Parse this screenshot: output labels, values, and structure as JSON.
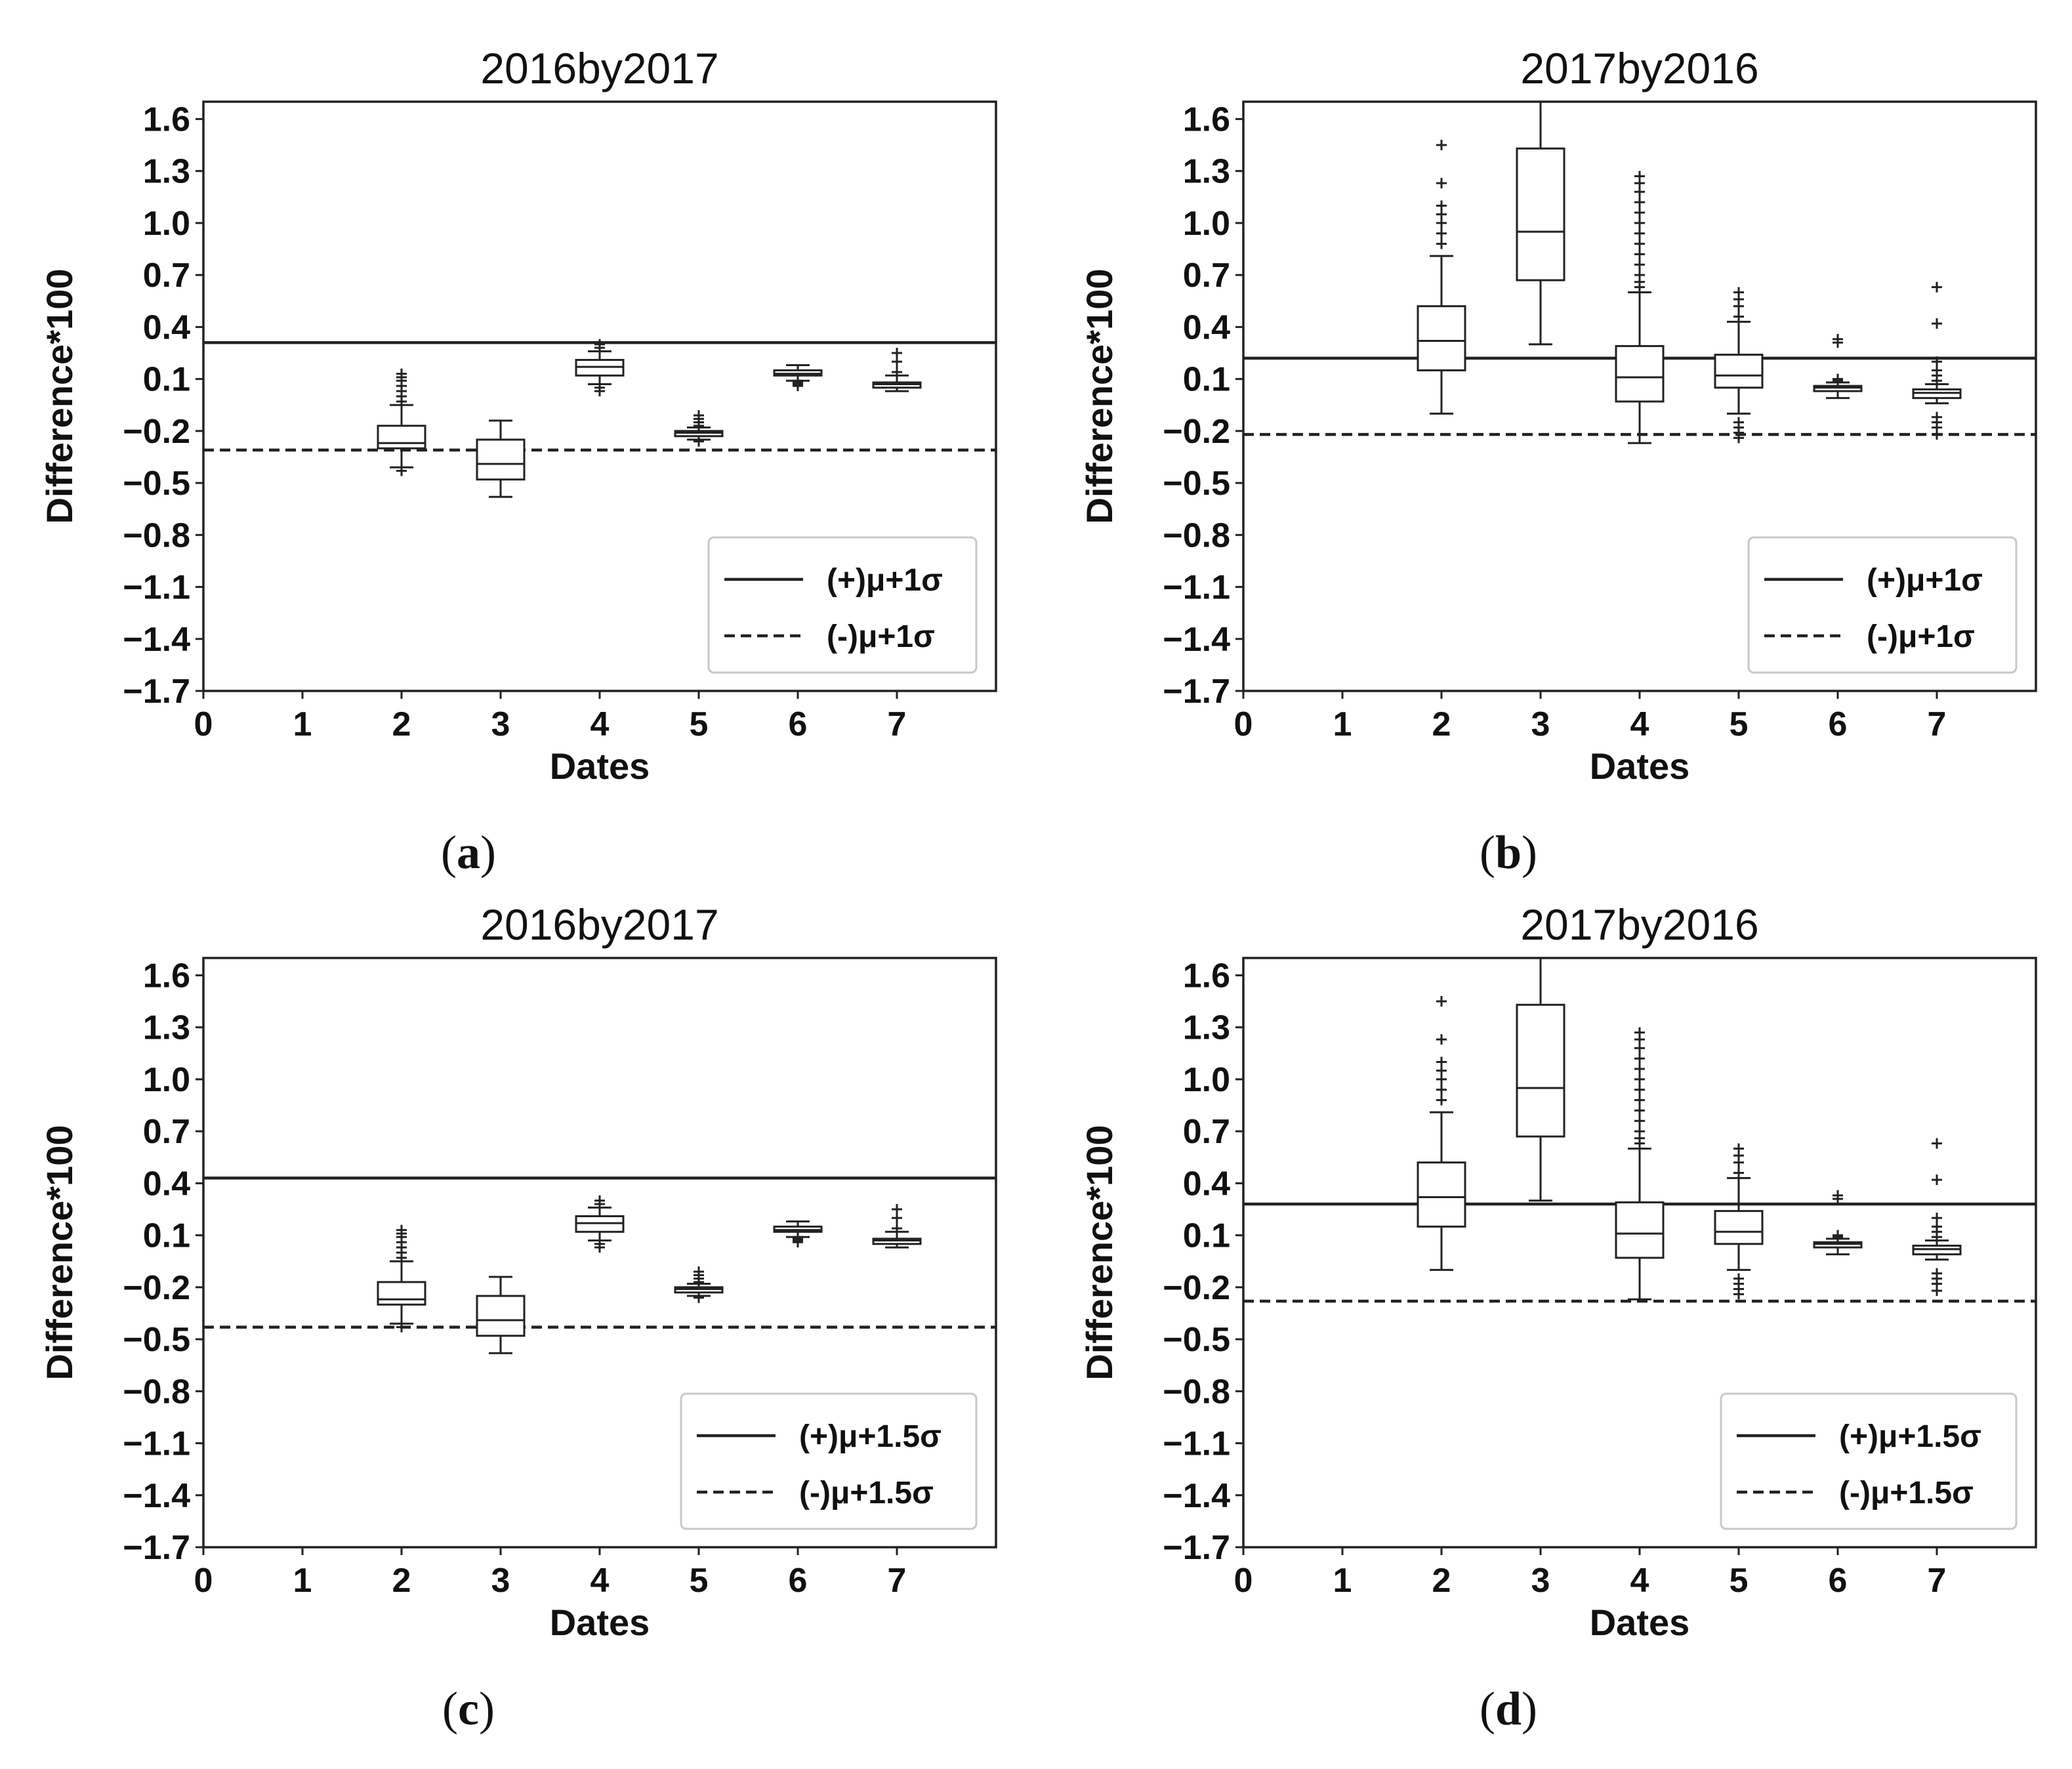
{
  "figure": {
    "panels": [
      {
        "id": "a",
        "caption_letter": "a",
        "chart_data": {
          "type": "box",
          "title": "2016by2017",
          "xlabel": "Dates",
          "ylabel": "Difference*100",
          "xlim": [
            0,
            8
          ],
          "ylim": [
            -1.7,
            1.7
          ],
          "x_ticks": [
            "0",
            "1",
            "2",
            "3",
            "4",
            "5",
            "6",
            "7"
          ],
          "y_ticks": [
            "1.6",
            "1.3",
            "1.0",
            "0.7",
            "0.4",
            "0.1",
            "-0.2",
            "-0.5",
            "-0.8",
            "-1.1",
            "-1.4",
            "-1.7"
          ],
          "reference_lines": [
            {
              "label": "(+)μ+1σ",
              "style": "solid",
              "value": 0.31
            },
            {
              "label": "(-)μ+1σ",
              "style": "dashed",
              "value": -0.31
            }
          ],
          "legend": {
            "location": "lower-right",
            "entries": [
              "(+)μ+1σ",
              "(-)μ+1σ"
            ]
          },
          "boxes": [
            {
              "date": 2,
              "whislo": -0.41,
              "q1": -0.3,
              "median": -0.27,
              "q3": -0.17,
              "whishi": -0.05,
              "fliers": [
                -0.43,
                -0.03,
                0.0,
                0.03,
                0.06,
                0.09,
                0.11,
                0.13
              ]
            },
            {
              "date": 3,
              "whislo": -0.58,
              "q1": -0.48,
              "median": -0.39,
              "q3": -0.25,
              "whishi": -0.14,
              "fliers": []
            },
            {
              "date": 4,
              "whislo": 0.07,
              "q1": 0.12,
              "median": 0.17,
              "q3": 0.21,
              "whishi": 0.26,
              "fliers": [
                0.03,
                0.05,
                0.07,
                0.28,
                0.3
              ]
            },
            {
              "date": 5,
              "whislo": -0.25,
              "q1": -0.23,
              "median": -0.21,
              "q3": -0.2,
              "whishi": -0.18,
              "fliers": [
                -0.26,
                -0.17,
                -0.15,
                -0.13,
                -0.11
              ]
            },
            {
              "date": 6,
              "whislo": 0.09,
              "q1": 0.12,
              "median": 0.13,
              "q3": 0.15,
              "whishi": 0.18,
              "fliers": [
                0.06,
                0.07,
                0.08,
                0.09
              ]
            },
            {
              "date": 7,
              "whislo": 0.03,
              "q1": 0.05,
              "median": 0.07,
              "q3": 0.08,
              "whishi": 0.12,
              "fliers": [
                0.14,
                0.2,
                0.25
              ]
            }
          ]
        }
      },
      {
        "id": "b",
        "caption_letter": "b",
        "chart_data": {
          "type": "box",
          "title": "2017by2016",
          "xlabel": "Dates",
          "ylabel": "Difference*100",
          "xlim": [
            0,
            8
          ],
          "ylim": [
            -1.7,
            1.7
          ],
          "x_ticks": [
            "0",
            "1",
            "2",
            "3",
            "4",
            "5",
            "6",
            "7"
          ],
          "y_ticks": [
            "1.6",
            "1.3",
            "1.0",
            "0.7",
            "0.4",
            "0.1",
            "-0.2",
            "-0.5",
            "-0.8",
            "-1.1",
            "-1.4",
            "-1.7"
          ],
          "reference_lines": [
            {
              "label": "(+)μ+1σ",
              "style": "solid",
              "value": 0.22
            },
            {
              "label": "(-)μ+1σ",
              "style": "dashed",
              "value": -0.22
            }
          ],
          "legend": {
            "location": "lower-right",
            "entries": [
              "(+)μ+1σ",
              "(-)μ+1σ"
            ]
          },
          "boxes": [
            {
              "date": 2,
              "whislo": -0.1,
              "q1": 0.15,
              "median": 0.32,
              "q3": 0.52,
              "whishi": 0.81,
              "fliers": [
                0.88,
                0.94,
                1.0,
                1.05,
                1.1,
                1.23,
                1.45
              ]
            },
            {
              "date": 3,
              "whislo": 0.3,
              "q1": 0.67,
              "median": 0.95,
              "q3": 1.43,
              "whishi": 1.7,
              "fliers": []
            },
            {
              "date": 4,
              "whislo": -0.27,
              "q1": -0.03,
              "median": 0.11,
              "q3": 0.29,
              "whishi": 0.6,
              "fliers": [
                0.63,
                0.66,
                0.7,
                0.76,
                0.82,
                0.88,
                0.94,
                1.0,
                1.06,
                1.12,
                1.18,
                1.23,
                1.27
              ]
            },
            {
              "date": 5,
              "whislo": -0.1,
              "q1": 0.05,
              "median": 0.12,
              "q3": 0.24,
              "whishi": 0.43,
              "fliers": [
                -0.24,
                -0.21,
                -0.18,
                -0.15,
                0.46,
                0.52,
                0.56,
                0.6
              ]
            },
            {
              "date": 6,
              "whislo": -0.01,
              "q1": 0.03,
              "median": 0.05,
              "q3": 0.06,
              "whishi": 0.08,
              "fliers": [
                0.09,
                0.1,
                0.31,
                0.33
              ]
            },
            {
              "date": 7,
              "whislo": -0.04,
              "q1": -0.01,
              "median": 0.02,
              "q3": 0.04,
              "whishi": 0.07,
              "fliers": [
                -0.22,
                -0.18,
                -0.15,
                -0.12,
                0.09,
                0.12,
                0.15,
                0.2,
                0.42,
                0.63
              ]
            }
          ]
        }
      },
      {
        "id": "c",
        "caption_letter": "c",
        "chart_data": {
          "type": "box",
          "title": "2016by2017",
          "xlabel": "Dates",
          "ylabel": "Difference*100",
          "xlim": [
            0,
            8
          ],
          "ylim": [
            -1.7,
            1.7
          ],
          "x_ticks": [
            "0",
            "1",
            "2",
            "3",
            "4",
            "5",
            "6",
            "7"
          ],
          "y_ticks": [
            "1.6",
            "1.3",
            "1.0",
            "0.7",
            "0.4",
            "0.1",
            "-0.2",
            "-0.5",
            "-0.8",
            "-1.1",
            "-1.4",
            "-1.7"
          ],
          "reference_lines": [
            {
              "label": "(+)μ+1.5σ",
              "style": "solid",
              "value": 0.43
            },
            {
              "label": "(-)μ+1.5σ",
              "style": "dashed",
              "value": -0.43
            }
          ],
          "legend": {
            "location": "lower-right",
            "entries": [
              "(+)μ+1.5σ",
              "(-)μ+1.5σ"
            ]
          },
          "boxes": [
            {
              "date": 2,
              "whislo": -0.41,
              "q1": -0.3,
              "median": -0.27,
              "q3": -0.17,
              "whishi": -0.05,
              "fliers": [
                -0.43,
                -0.03,
                0.0,
                0.03,
                0.06,
                0.09,
                0.11,
                0.13
              ]
            },
            {
              "date": 3,
              "whislo": -0.58,
              "q1": -0.48,
              "median": -0.39,
              "q3": -0.25,
              "whishi": -0.14,
              "fliers": []
            },
            {
              "date": 4,
              "whislo": 0.07,
              "q1": 0.12,
              "median": 0.17,
              "q3": 0.21,
              "whishi": 0.26,
              "fliers": [
                0.03,
                0.05,
                0.07,
                0.28,
                0.3
              ]
            },
            {
              "date": 5,
              "whislo": -0.25,
              "q1": -0.23,
              "median": -0.21,
              "q3": -0.2,
              "whishi": -0.18,
              "fliers": [
                -0.26,
                -0.17,
                -0.15,
                -0.13,
                -0.11
              ]
            },
            {
              "date": 6,
              "whislo": 0.09,
              "q1": 0.12,
              "median": 0.13,
              "q3": 0.15,
              "whishi": 0.18,
              "fliers": [
                0.06,
                0.07,
                0.08,
                0.09
              ]
            },
            {
              "date": 7,
              "whislo": 0.03,
              "q1": 0.05,
              "median": 0.07,
              "q3": 0.08,
              "whishi": 0.12,
              "fliers": [
                0.14,
                0.2,
                0.25
              ]
            }
          ]
        }
      },
      {
        "id": "d",
        "caption_letter": "d",
        "chart_data": {
          "type": "box",
          "title": "2017by2016",
          "xlabel": "Dates",
          "ylabel": "Difference*100",
          "xlim": [
            0,
            8
          ],
          "ylim": [
            -1.7,
            1.7
          ],
          "x_ticks": [
            "0",
            "1",
            "2",
            "3",
            "4",
            "5",
            "6",
            "7"
          ],
          "y_ticks": [
            "1.6",
            "1.3",
            "1.0",
            "0.7",
            "0.4",
            "0.1",
            "-0.2",
            "-0.5",
            "-0.8",
            "-1.1",
            "-1.4",
            "-1.7"
          ],
          "reference_lines": [
            {
              "label": "(+)μ+1.5σ",
              "style": "solid",
              "value": 0.28
            },
            {
              "label": "(-)μ+1.5σ",
              "style": "dashed",
              "value": -0.28
            }
          ],
          "legend": {
            "location": "lower-right",
            "entries": [
              "(+)μ+1.5σ",
              "(-)μ+1.5σ"
            ]
          },
          "boxes": [
            {
              "date": 2,
              "whislo": -0.1,
              "q1": 0.15,
              "median": 0.32,
              "q3": 0.52,
              "whishi": 0.81,
              "fliers": [
                0.88,
                0.94,
                1.0,
                1.05,
                1.1,
                1.23,
                1.45
              ]
            },
            {
              "date": 3,
              "whislo": 0.3,
              "q1": 0.67,
              "median": 0.95,
              "q3": 1.43,
              "whishi": 1.7,
              "fliers": []
            },
            {
              "date": 4,
              "whislo": -0.27,
              "q1": -0.03,
              "median": 0.11,
              "q3": 0.29,
              "whishi": 0.6,
              "fliers": [
                0.63,
                0.66,
                0.7,
                0.76,
                0.82,
                0.88,
                0.94,
                1.0,
                1.06,
                1.12,
                1.18,
                1.23,
                1.27
              ]
            },
            {
              "date": 5,
              "whislo": -0.1,
              "q1": 0.05,
              "median": 0.12,
              "q3": 0.24,
              "whishi": 0.43,
              "fliers": [
                -0.24,
                -0.21,
                -0.18,
                -0.15,
                0.46,
                0.52,
                0.56,
                0.6
              ]
            },
            {
              "date": 6,
              "whislo": -0.01,
              "q1": 0.03,
              "median": 0.05,
              "q3": 0.06,
              "whishi": 0.08,
              "fliers": [
                0.09,
                0.1,
                0.31,
                0.33
              ]
            },
            {
              "date": 7,
              "whislo": -0.04,
              "q1": -0.01,
              "median": 0.02,
              "q3": 0.04,
              "whishi": 0.07,
              "fliers": [
                -0.22,
                -0.18,
                -0.15,
                -0.12,
                0.09,
                0.12,
                0.15,
                0.2,
                0.42,
                0.63
              ]
            }
          ]
        }
      }
    ]
  }
}
